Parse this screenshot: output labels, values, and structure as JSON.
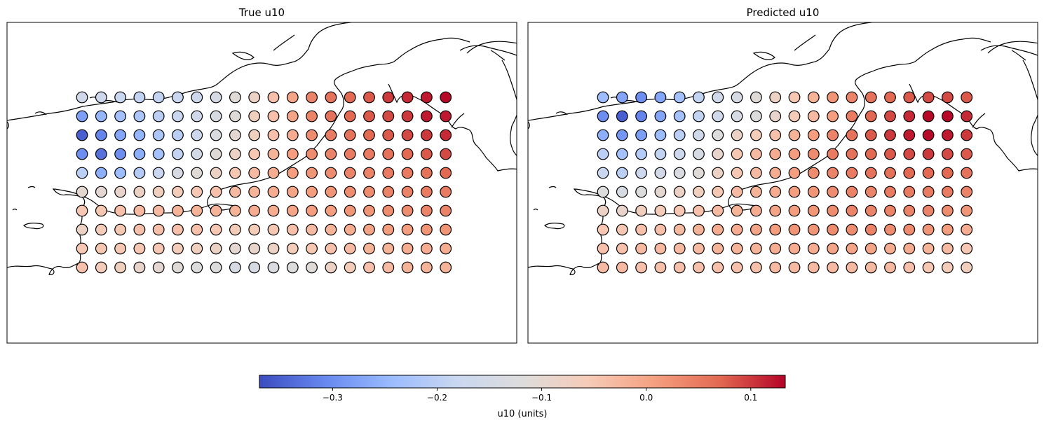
{
  "colorbar": {
    "label": "u10 (units)",
    "vmin": -0.37,
    "vmax": 0.133,
    "ticks": [
      -0.3,
      -0.2,
      -0.1,
      0.0,
      0.1
    ],
    "tick_labels": [
      "−0.3",
      "−0.2",
      "−0.1",
      "0.0",
      "0.1"
    ],
    "colormap": "coolwarm",
    "stops": [
      "#3b4cc0",
      "#6788ee",
      "#9abbff",
      "#c9d7f0",
      "#dddcdc",
      "#f6cbb7",
      "#f5a081",
      "#e26952",
      "#b40426"
    ]
  },
  "chart_data": [
    {
      "type": "scatter",
      "title": "True u10",
      "columns": 20,
      "rows": 10,
      "values": [
        [
          -0.16,
          -0.17,
          -0.18,
          -0.19,
          -0.19,
          -0.18,
          -0.17,
          -0.14,
          -0.11,
          -0.08,
          -0.04,
          0.0,
          0.04,
          0.06,
          0.07,
          0.08,
          0.1,
          0.11,
          0.12,
          0.13
        ],
        [
          -0.28,
          -0.25,
          -0.23,
          -0.22,
          -0.2,
          -0.18,
          -0.16,
          -0.14,
          -0.11,
          -0.07,
          -0.04,
          0.0,
          0.04,
          0.06,
          0.07,
          0.08,
          0.09,
          0.1,
          0.12,
          0.12
        ],
        [
          -0.35,
          -0.31,
          -0.27,
          -0.25,
          -0.22,
          -0.2,
          -0.17,
          -0.13,
          -0.1,
          -0.07,
          -0.04,
          -0.01,
          0.03,
          0.05,
          0.06,
          0.07,
          0.08,
          0.09,
          0.1,
          0.11
        ],
        [
          -0.3,
          -0.33,
          -0.3,
          -0.26,
          -0.23,
          -0.19,
          -0.15,
          -0.11,
          -0.08,
          -0.05,
          -0.02,
          0.01,
          0.03,
          0.04,
          0.05,
          0.05,
          0.06,
          0.07,
          0.08,
          0.09
        ],
        [
          -0.2,
          -0.26,
          -0.24,
          -0.21,
          -0.18,
          -0.14,
          -0.11,
          -0.08,
          -0.05,
          -0.03,
          -0.01,
          0.01,
          0.02,
          0.03,
          0.04,
          0.04,
          0.05,
          0.05,
          0.06,
          0.07
        ],
        [
          -0.1,
          -0.1,
          -0.09,
          -0.08,
          -0.07,
          -0.06,
          -0.05,
          -0.04,
          -0.03,
          -0.02,
          -0.01,
          0.0,
          0.01,
          0.02,
          0.03,
          0.03,
          0.04,
          0.04,
          0.05,
          0.05
        ],
        [
          -0.05,
          -0.05,
          -0.04,
          -0.03,
          -0.03,
          -0.02,
          -0.02,
          -0.02,
          -0.02,
          -0.01,
          -0.01,
          0.0,
          0.01,
          0.01,
          0.02,
          0.02,
          0.03,
          0.03,
          0.04,
          0.04
        ],
        [
          -0.08,
          -0.06,
          -0.05,
          -0.04,
          -0.04,
          -0.04,
          -0.04,
          -0.05,
          -0.06,
          -0.06,
          -0.05,
          -0.04,
          -0.03,
          -0.02,
          -0.01,
          0.0,
          0.01,
          0.01,
          0.02,
          0.02
        ],
        [
          -0.05,
          -0.05,
          -0.05,
          -0.05,
          -0.05,
          -0.06,
          -0.07,
          -0.08,
          -0.1,
          -0.09,
          -0.08,
          -0.06,
          -0.05,
          -0.04,
          -0.03,
          -0.02,
          -0.02,
          -0.01,
          -0.01,
          -0.01
        ],
        [
          -0.04,
          -0.06,
          -0.07,
          -0.09,
          -0.1,
          -0.11,
          -0.12,
          -0.12,
          -0.14,
          -0.14,
          -0.13,
          -0.12,
          -0.11,
          -0.08,
          -0.06,
          -0.04,
          -0.03,
          -0.02,
          -0.02,
          -0.02
        ]
      ]
    },
    {
      "type": "scatter",
      "title": "Predicted u10",
      "columns": 20,
      "rows": 10,
      "values": [
        [
          -0.24,
          -0.27,
          -0.3,
          -0.27,
          -0.23,
          -0.19,
          -0.16,
          -0.14,
          -0.11,
          -0.08,
          -0.05,
          -0.02,
          0.02,
          0.04,
          0.06,
          0.07,
          0.08,
          0.09,
          0.09,
          0.08
        ],
        [
          -0.3,
          -0.35,
          -0.31,
          -0.27,
          -0.23,
          -0.19,
          -0.16,
          -0.14,
          -0.12,
          -0.09,
          -0.06,
          -0.03,
          0.01,
          0.05,
          0.07,
          0.09,
          0.11,
          0.13,
          0.13,
          0.11
        ],
        [
          -0.26,
          -0.29,
          -0.28,
          -0.24,
          -0.2,
          -0.16,
          -0.12,
          -0.08,
          -0.06,
          -0.04,
          -0.02,
          0.01,
          0.04,
          0.06,
          0.08,
          0.1,
          0.12,
          0.13,
          0.12,
          0.1
        ],
        [
          -0.2,
          -0.23,
          -0.21,
          -0.19,
          -0.17,
          -0.14,
          -0.09,
          -0.05,
          -0.03,
          -0.01,
          0.01,
          0.03,
          0.05,
          0.06,
          0.07,
          0.08,
          0.09,
          0.1,
          0.09,
          0.08
        ],
        [
          -0.18,
          -0.2,
          -0.17,
          -0.15,
          -0.13,
          -0.11,
          -0.08,
          -0.05,
          -0.03,
          -0.01,
          0.01,
          0.03,
          0.04,
          0.05,
          0.06,
          0.06,
          0.07,
          0.07,
          0.07,
          0.06
        ],
        [
          -0.12,
          -0.14,
          -0.12,
          -0.1,
          -0.08,
          -0.07,
          -0.05,
          -0.03,
          -0.02,
          -0.01,
          0.01,
          0.02,
          0.03,
          0.04,
          0.04,
          0.05,
          0.05,
          0.05,
          0.05,
          0.04
        ],
        [
          -0.08,
          -0.09,
          -0.07,
          -0.06,
          -0.05,
          -0.04,
          -0.03,
          -0.02,
          -0.01,
          0.0,
          0.01,
          0.02,
          0.03,
          0.04,
          0.04,
          0.04,
          0.04,
          0.04,
          0.03,
          0.02
        ],
        [
          -0.05,
          -0.05,
          -0.04,
          -0.04,
          -0.03,
          -0.02,
          -0.01,
          -0.01,
          0.0,
          0.01,
          0.02,
          0.02,
          0.03,
          0.03,
          0.04,
          0.03,
          0.03,
          0.02,
          0.01,
          -0.01
        ],
        [
          -0.04,
          -0.04,
          -0.03,
          -0.03,
          -0.03,
          -0.03,
          -0.02,
          -0.02,
          -0.02,
          -0.01,
          -0.01,
          -0.01,
          0.0,
          0.0,
          0.0,
          -0.01,
          -0.01,
          -0.02,
          -0.03,
          -0.05
        ],
        [
          -0.03,
          -0.03,
          -0.04,
          -0.04,
          -0.04,
          -0.04,
          -0.04,
          -0.04,
          -0.04,
          -0.03,
          -0.03,
          -0.03,
          -0.03,
          -0.03,
          -0.03,
          -0.03,
          -0.04,
          -0.05,
          -0.06,
          -0.07
        ]
      ]
    }
  ]
}
